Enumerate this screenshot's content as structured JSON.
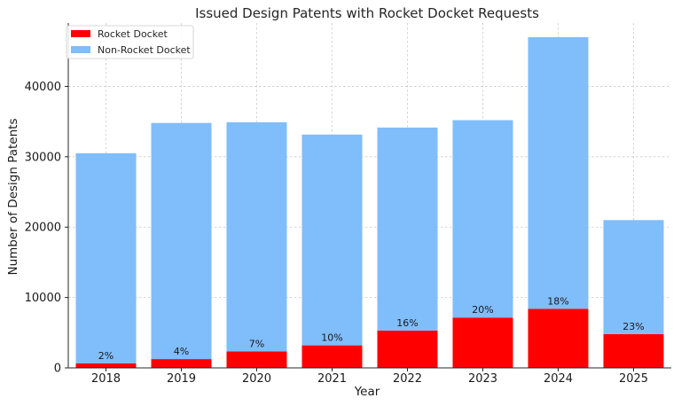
{
  "chart_data": {
    "type": "bar",
    "stacked": true,
    "title": "Issued Design Patents with Rocket Docket Requests",
    "xlabel": "Year",
    "ylabel": "Number of Design Patents",
    "categories": [
      "2018",
      "2019",
      "2020",
      "2021",
      "2022",
      "2023",
      "2024",
      "2025"
    ],
    "series": [
      {
        "name": "Rocket Docket",
        "color": "#ff0000",
        "values": [
          650,
          1250,
          2350,
          3200,
          5300,
          7150,
          8400,
          4800
        ]
      },
      {
        "name": "Non-Rocket Docket",
        "color": "#80bdfb",
        "values": [
          29850,
          33550,
          32550,
          29950,
          28850,
          28050,
          38600,
          16200
        ]
      }
    ],
    "totals": [
      30500,
      34800,
      34900,
      33150,
      34150,
      35200,
      47000,
      21000
    ],
    "percent_labels": [
      "2%",
      "4%",
      "7%",
      "10%",
      "16%",
      "20%",
      "18%",
      "23%"
    ],
    "ylim": [
      0,
      49000
    ],
    "yticks": [
      "0",
      "10000",
      "20000",
      "30000",
      "40000"
    ],
    "ytick_values": [
      0,
      10000,
      20000,
      30000,
      40000
    ],
    "grid": true,
    "legend_position": "top-left"
  }
}
